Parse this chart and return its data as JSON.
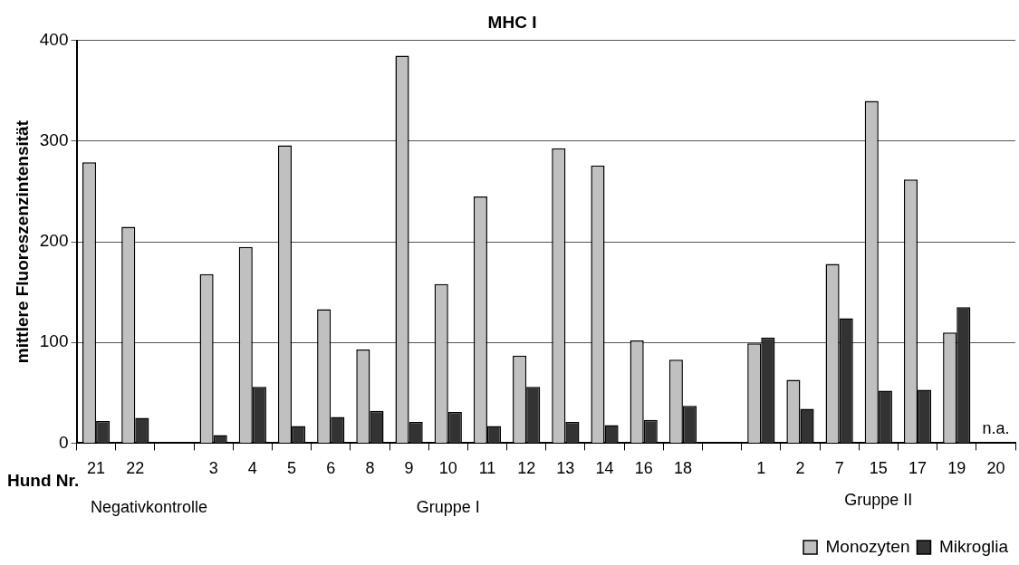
{
  "chart_data": {
    "type": "bar",
    "title": "MHC I",
    "ylabel": "mittlere Fluoreszenzintensität",
    "categories": [
      "21",
      "22",
      null,
      "3",
      "4",
      "5",
      "6",
      "8",
      "9",
      "10",
      "11",
      "12",
      "13",
      "14",
      "16",
      "18",
      null,
      "1",
      "2",
      "7",
      "15",
      "17",
      "19",
      "20"
    ],
    "series": [
      {
        "name": "Monozyten",
        "color": "#c0c0c0",
        "values": [
          279,
          215,
          null,
          168,
          195,
          296,
          133,
          93,
          385,
          158,
          245,
          87,
          293,
          276,
          102,
          83,
          null,
          99,
          63,
          178,
          340,
          262,
          110,
          null
        ]
      },
      {
        "name": "Mikroglia",
        "color": "#333333",
        "values": [
          22,
          25,
          null,
          8,
          56,
          17,
          26,
          32,
          21,
          31,
          17,
          56,
          21,
          18,
          23,
          37,
          null,
          105,
          34,
          124,
          52,
          53,
          135,
          null
        ]
      }
    ],
    "ylim": [
      0,
      400
    ],
    "yticks": [
      0,
      100,
      200,
      300,
      400
    ],
    "grid": "y",
    "legend": "bottom right",
    "annotations": [
      "Hund Nr.",
      "Negativkontrolle",
      "Gruppe I",
      "Gruppe II",
      "n.a."
    ]
  }
}
